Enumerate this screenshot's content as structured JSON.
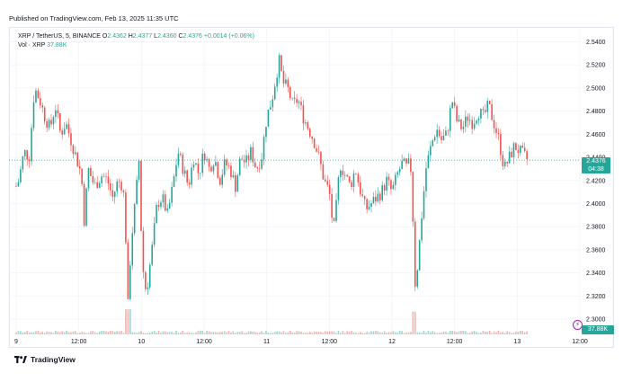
{
  "header": {
    "published": "Published on TradingView.com, Feb 13, 2025 11:35 UTC"
  },
  "legend": {
    "symbol": "XRP / TetherUS, 5, BINANCE",
    "open_label": "O",
    "open": "2.4362",
    "high_label": "H",
    "high": "2.4377",
    "low_label": "L",
    "low": "2.4360",
    "close_label": "C",
    "close": "2.4376",
    "change": "+0.0014 (+0.06%)",
    "volume_label": "Vol · XRP",
    "volume": "37.88K"
  },
  "badges": {
    "last_price": "2.4376",
    "countdown": "04:38",
    "last_volume": "37.88K"
  },
  "brand": {
    "name": "TradingView"
  },
  "colors": {
    "up": "#26a69a",
    "down": "#ef5350",
    "grid": "#f0f3fa",
    "text": "#131722",
    "event_marker": "#9c27b0"
  },
  "chart_data": {
    "type": "candlestick",
    "symbol": "XRP / TetherUS",
    "interval_minutes": 5,
    "exchange": "BINANCE",
    "grid": true,
    "y_axis_side": "right",
    "ylim": [
      2.29,
      2.545
    ],
    "y_ticks": [
      2.3,
      2.32,
      2.34,
      2.36,
      2.38,
      2.4,
      2.42,
      2.44,
      2.46,
      2.48,
      2.5,
      2.52,
      2.54
    ],
    "y_tick_labels": [
      "2.3000",
      "2.3200",
      "2.3400",
      "2.3600",
      "2.3800",
      "2.4000",
      "2.4200",
      "2.4400",
      "2.4600",
      "2.4800",
      "2.5000",
      "2.5200",
      "2.5400"
    ],
    "x_ticks": [
      {
        "label": "9",
        "t": 0
      },
      {
        "label": "12:00",
        "t": 12
      },
      {
        "label": "10",
        "t": 24
      },
      {
        "label": "12:00",
        "t": 36
      },
      {
        "label": "11",
        "t": 48
      },
      {
        "label": "12:00",
        "t": 60
      },
      {
        "label": "12",
        "t": 72
      },
      {
        "label": "12:00",
        "t": 84
      },
      {
        "label": "13",
        "t": 96
      },
      {
        "label": "12:00",
        "t": 108
      }
    ],
    "x_range_hours": [
      0,
      108
    ],
    "price_path": [
      [
        0,
        2.415
      ],
      [
        0.5,
        2.42
      ],
      [
        1.5,
        2.445
      ],
      [
        2.5,
        2.44
      ],
      [
        3.5,
        2.5
      ],
      [
        4.5,
        2.49
      ],
      [
        5.5,
        2.475
      ],
      [
        6.5,
        2.465
      ],
      [
        7.5,
        2.485
      ],
      [
        8.5,
        2.46
      ],
      [
        9.5,
        2.47
      ],
      [
        10.5,
        2.455
      ],
      [
        11.5,
        2.44
      ],
      [
        12.5,
        2.425
      ],
      [
        13,
        2.385
      ],
      [
        13.8,
        2.43
      ],
      [
        15,
        2.415
      ],
      [
        16.5,
        2.425
      ],
      [
        17.5,
        2.42
      ],
      [
        18.5,
        2.405
      ],
      [
        19.5,
        2.42
      ],
      [
        20.5,
        2.415
      ],
      [
        21,
        2.37
      ],
      [
        21.4,
        2.31
      ],
      [
        22,
        2.365
      ],
      [
        23,
        2.41
      ],
      [
        23.5,
        2.44
      ],
      [
        24,
        2.37
      ],
      [
        24.5,
        2.33
      ],
      [
        25,
        2.325
      ],
      [
        26,
        2.36
      ],
      [
        27,
        2.4
      ],
      [
        28,
        2.405
      ],
      [
        29,
        2.39
      ],
      [
        30,
        2.415
      ],
      [
        31,
        2.445
      ],
      [
        32,
        2.43
      ],
      [
        33,
        2.415
      ],
      [
        34,
        2.44
      ],
      [
        35,
        2.425
      ],
      [
        36,
        2.445
      ],
      [
        37,
        2.43
      ],
      [
        38,
        2.44
      ],
      [
        39,
        2.42
      ],
      [
        40,
        2.435
      ],
      [
        41,
        2.43
      ],
      [
        42,
        2.415
      ],
      [
        43,
        2.44
      ],
      [
        44,
        2.435
      ],
      [
        45,
        2.445
      ],
      [
        46,
        2.43
      ],
      [
        47,
        2.44
      ],
      [
        48,
        2.475
      ],
      [
        49,
        2.49
      ],
      [
        50,
        2.515
      ],
      [
        50.5,
        2.525
      ],
      [
        51,
        2.505
      ],
      [
        52,
        2.5
      ],
      [
        53,
        2.485
      ],
      [
        54,
        2.49
      ],
      [
        55,
        2.475
      ],
      [
        56,
        2.465
      ],
      [
        57,
        2.455
      ],
      [
        58,
        2.44
      ],
      [
        59,
        2.42
      ],
      [
        60,
        2.41
      ],
      [
        60.8,
        2.375
      ],
      [
        61.5,
        2.405
      ],
      [
        62,
        2.435
      ],
      [
        63,
        2.425
      ],
      [
        64,
        2.415
      ],
      [
        65,
        2.43
      ],
      [
        66,
        2.41
      ],
      [
        67,
        2.395
      ],
      [
        68,
        2.4
      ],
      [
        69,
        2.405
      ],
      [
        70,
        2.41
      ],
      [
        71,
        2.42
      ],
      [
        72,
        2.41
      ],
      [
        73,
        2.425
      ],
      [
        74,
        2.435
      ],
      [
        75,
        2.43
      ],
      [
        75.5,
        2.44
      ],
      [
        76,
        2.39
      ],
      [
        76.4,
        2.33
      ],
      [
        77,
        2.35
      ],
      [
        77.5,
        2.38
      ],
      [
        78.5,
        2.43
      ],
      [
        79.5,
        2.45
      ],
      [
        80.5,
        2.465
      ],
      [
        81.5,
        2.455
      ],
      [
        82.5,
        2.46
      ],
      [
        83,
        2.475
      ],
      [
        83.5,
        2.49
      ],
      [
        84.5,
        2.47
      ],
      [
        85.5,
        2.465
      ],
      [
        86.5,
        2.475
      ],
      [
        87.5,
        2.47
      ],
      [
        88.5,
        2.48
      ],
      [
        89.5,
        2.475
      ],
      [
        90.5,
        2.485
      ],
      [
        91.5,
        2.47
      ],
      [
        92.5,
        2.455
      ],
      [
        93.5,
        2.43
      ],
      [
        94.5,
        2.44
      ],
      [
        95.5,
        2.45
      ],
      [
        96.5,
        2.445
      ],
      [
        97.5,
        2.44
      ],
      [
        98,
        2.4376
      ]
    ],
    "last_price": 2.4376,
    "volume_series": {
      "name": "Vol · XRP",
      "last": 37880,
      "spikes": [
        {
          "t": 21.5,
          "relative": 1.0
        },
        {
          "t": 76.2,
          "relative": 0.9
        }
      ]
    }
  }
}
